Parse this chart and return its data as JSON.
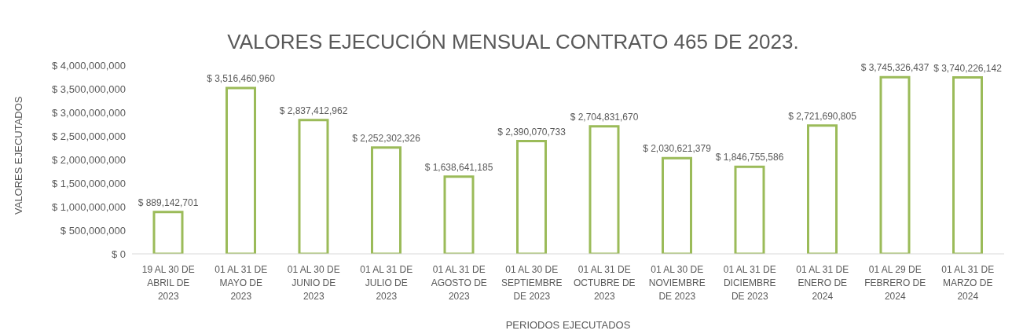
{
  "chart_data": {
    "type": "bar",
    "title": "VALORES EJECUCIÓN MENSUAL CONTRATO 465 DE 2023.",
    "xlabel": "PERIODOS EJECUTADOS",
    "ylabel": "VALORES EJECUTADOS",
    "categories": [
      "19 AL 30 DE ABRIL DE 2023",
      "01 AL 31 DE MAYO DE 2023",
      "01 AL 30 DE JUNIO DE 2023",
      "01 AL 31 DE JULIO DE 2023",
      "01 AL 31 DE AGOSTO DE 2023",
      "01 AL 30 DE SEPTIEMBRE DE 2023",
      "01 AL 31 DE OCTUBRE DE 2023",
      "01 AL 30 DE NOVIEMBRE DE 2023",
      "01 AL 31 DE DICIEMBRE DE 2023",
      "01 AL 31 DE ENERO DE 2024",
      "01 AL 29 DE FEBRERO DE 2024",
      "01 AL 31 DE MARZO DE 2024"
    ],
    "values": [
      889142701,
      3516460960,
      2837412962,
      2252302326,
      1638641185,
      2390070733,
      2704831670,
      2030621379,
      1846755586,
      2721690805,
      3745326437,
      3740226142
    ],
    "value_labels": [
      "$ 889,142,701",
      "$ 3,516,460,960",
      "$ 2,837,412,962",
      "$ 2,252,302,326",
      "$ 1,638,641,185",
      "$ 2,390,070,733",
      "$ 2,704,831,670",
      "$ 2,030,621,379",
      "$ 1,846,755,586",
      "$ 2,721,690,805",
      "$ 3,745,326,437",
      "$ 3,740,226,142"
    ],
    "color": "#9bbb59",
    "ylim": [
      0,
      4000000000
    ],
    "yticks": [
      {
        "value": 0,
        "label": "$ 0"
      },
      {
        "value": 500000000,
        "label": "$ 500,000,000"
      },
      {
        "value": 1000000000,
        "label": "$ 1,000,000,000"
      },
      {
        "value": 1500000000,
        "label": "$ 1,500,000,000"
      },
      {
        "value": 2000000000,
        "label": "$ 2,000,000,000"
      },
      {
        "value": 2500000000,
        "label": "$ 2,500,000,000"
      },
      {
        "value": 3000000000,
        "label": "$ 3,000,000,000"
      },
      {
        "value": 3500000000,
        "label": "$ 3,500,000,000"
      },
      {
        "value": 4000000000,
        "label": "$ 4,000,000,000"
      }
    ],
    "grid": false,
    "legend": false
  }
}
